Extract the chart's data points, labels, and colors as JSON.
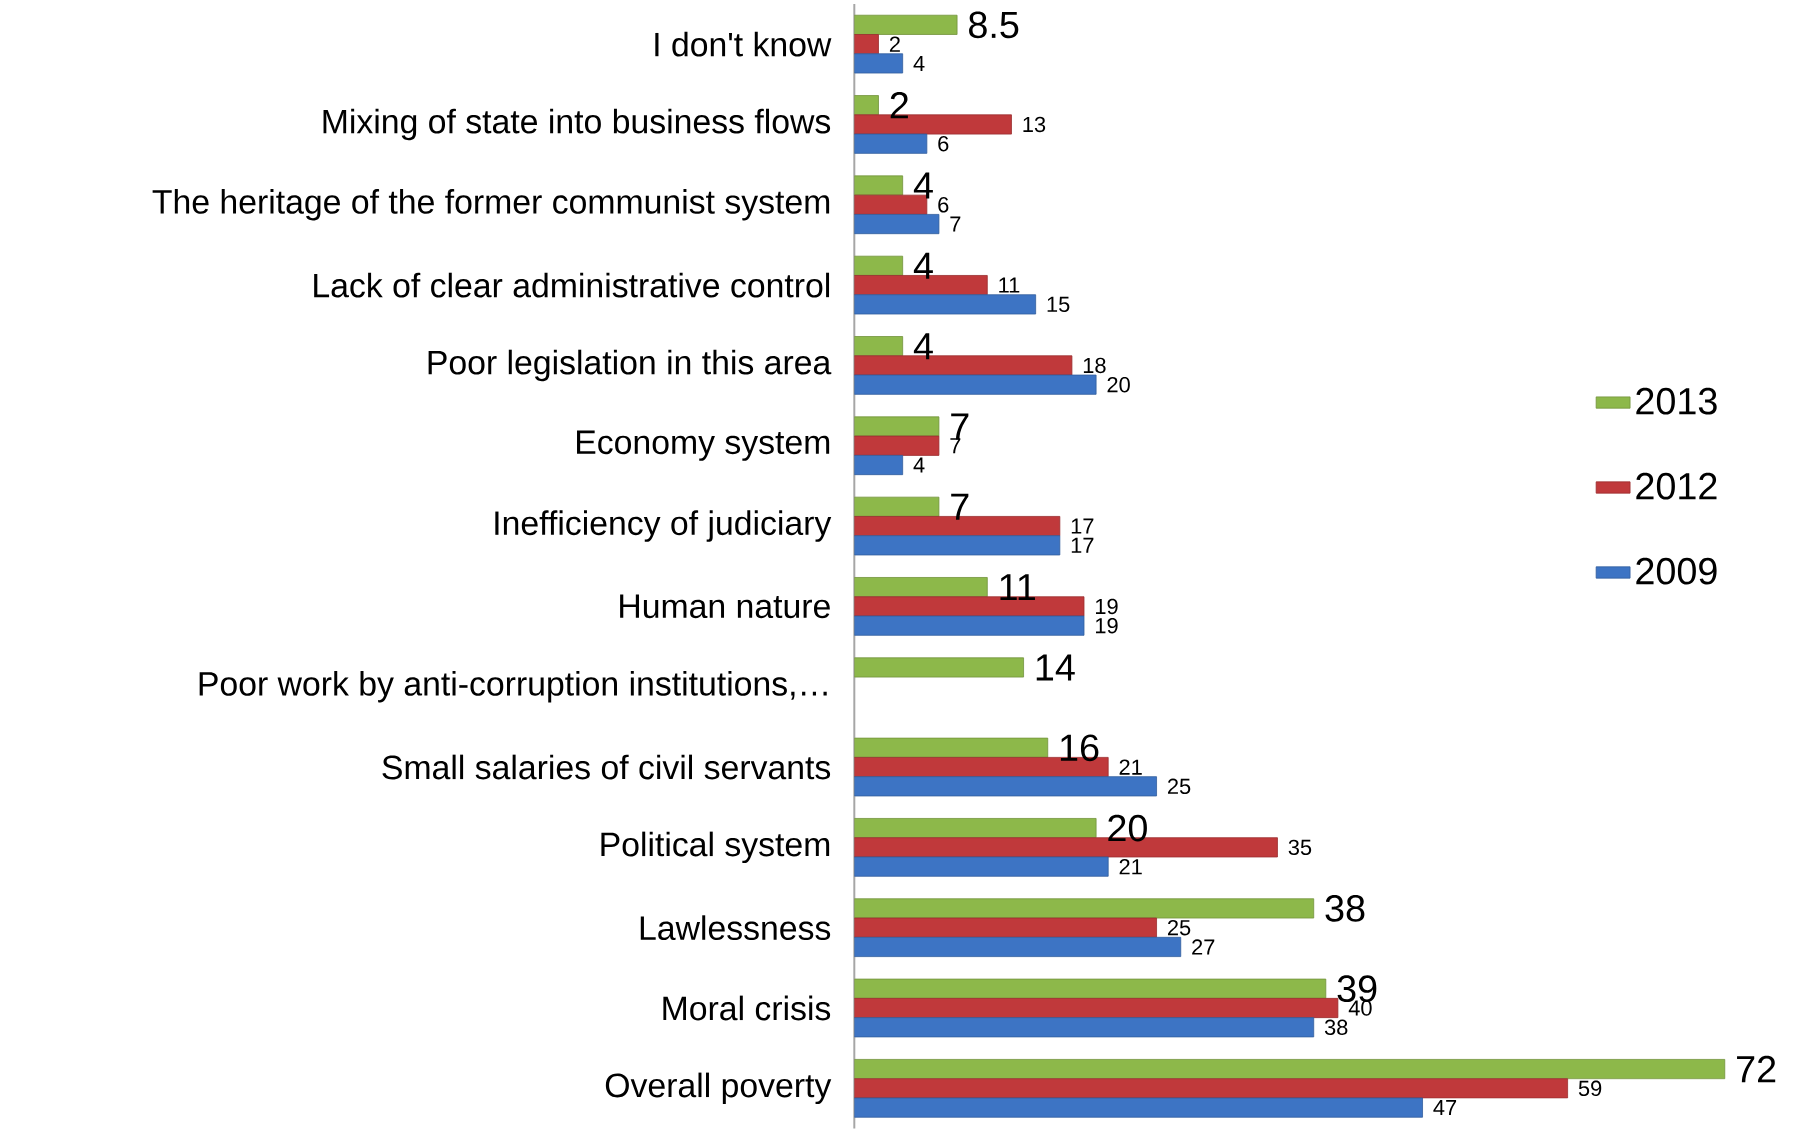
{
  "chart_data": {
    "type": "bar",
    "orientation": "horizontal",
    "categories": [
      "I don't know",
      "Mixing of state into business flows",
      "The heritage of the former communist system",
      "Lack of clear administrative control",
      "Poor legislation in this area",
      "Economy system",
      "Inefficiency of judiciary",
      "Human nature",
      "Poor work by anti-corruption institutions,…",
      "Small salaries of civil servants",
      "Political system",
      "Lawlessness",
      "Moral crisis",
      "Overall poverty"
    ],
    "series": [
      {
        "name": "2013",
        "color": "#8db84a",
        "values": [
          8.5,
          2,
          4,
          4,
          4,
          7,
          7,
          11,
          14,
          16,
          20,
          38,
          39,
          72
        ]
      },
      {
        "name": "2012",
        "color": "#c0393b",
        "values": [
          2,
          13,
          6,
          11,
          18,
          7,
          17,
          19,
          null,
          21,
          35,
          25,
          40,
          59
        ]
      },
      {
        "name": "2009",
        "color": "#3d74c4",
        "values": [
          4,
          6,
          7,
          15,
          20,
          4,
          17,
          19,
          null,
          25,
          21,
          27,
          38,
          47
        ]
      }
    ],
    "data_labels": true,
    "legend": "right"
  }
}
